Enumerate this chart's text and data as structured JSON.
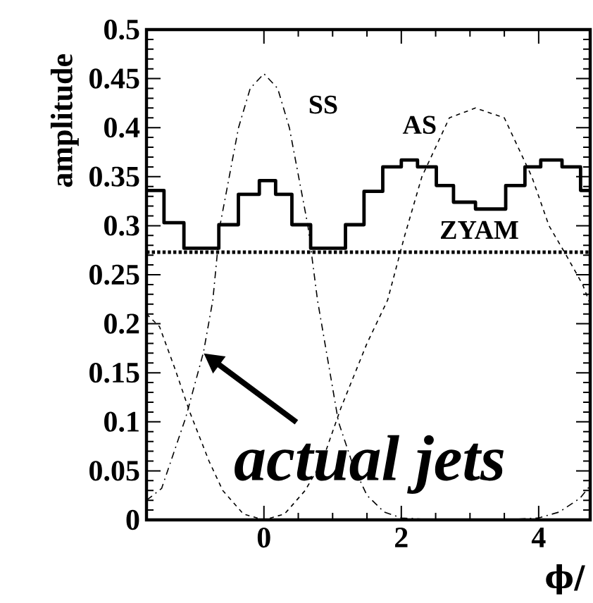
{
  "chart_data": {
    "type": "line",
    "ylabel": "amplitude",
    "xlabel": "ϕ/",
    "xlim": [
      -1.71,
      4.75
    ],
    "ylim": [
      0,
      0.5
    ],
    "xticks": [
      0,
      2,
      4
    ],
    "yticks": [
      0,
      0.05,
      0.1,
      0.15,
      0.2,
      0.25,
      0.3,
      0.35,
      0.4,
      0.45,
      0.5
    ],
    "marker": "none",
    "series": [
      {
        "type": "step",
        "color": "#000000",
        "line_style": "solid",
        "x": [
          -1.71,
          -1.455,
          -1.165,
          -0.657,
          -0.372,
          -0.067,
          0.17,
          0.407,
          0.68,
          1.187,
          1.457,
          1.73,
          2.0,
          2.236,
          2.51,
          2.76,
          3.08,
          3.52,
          3.8,
          4.03,
          4.34,
          4.61,
          4.75
        ],
        "values": [
          0.336,
          0.303,
          0.277,
          0.301,
          0.332,
          0.346,
          0.332,
          0.301,
          0.277,
          0.301,
          0.335,
          0.36,
          0.367,
          0.36,
          0.341,
          0.324,
          0.317,
          0.341,
          0.36,
          0.367,
          0.36,
          0.336,
          0.336
        ]
      },
      {
        "name": "SS",
        "type": "line",
        "color": "#000000",
        "line_style": "dashdot",
        "x": [
          -1.71,
          -1.49,
          -1.14,
          -0.88,
          -0.744,
          -0.64,
          -0.37,
          -0.2,
          0,
          0.2,
          0.37,
          0.64,
          0.78,
          1.085,
          1.3,
          1.5,
          1.75,
          2.0,
          2.5,
          3.0,
          3.5,
          4.0,
          4.3,
          4.6,
          4.75
        ],
        "values": [
          0.02,
          0.032,
          0.104,
          0.171,
          0.224,
          0.3,
          0.4,
          0.44,
          0.455,
          0.44,
          0.4,
          0.3,
          0.224,
          0.1,
          0.055,
          0.025,
          0.008,
          0.002,
          0,
          0,
          0,
          0.002,
          0.008,
          0.022,
          0.035
        ]
      },
      {
        "name": "AS",
        "type": "line",
        "color": "#000000",
        "line_style": "dashed",
        "x": [
          -1.71,
          -1.52,
          -1.3,
          -1.08,
          -0.8,
          -0.6,
          -0.3,
          0,
          0.3,
          0.6,
          0.85,
          1.12,
          1.5,
          1.8,
          2.05,
          2.3,
          2.7,
          3.08,
          3.5,
          3.9,
          4.15,
          4.4,
          4.64,
          4.75
        ],
        "values": [
          0.21,
          0.197,
          0.155,
          0.11,
          0.06,
          0.03,
          0.006,
          0,
          0.006,
          0.03,
          0.06,
          0.114,
          0.18,
          0.224,
          0.29,
          0.35,
          0.41,
          0.42,
          0.41,
          0.35,
          0.3,
          0.27,
          0.24,
          0.22
        ]
      }
    ],
    "ref_lines": [
      {
        "axis": "y",
        "value": 0.273,
        "label": "ZYAM",
        "line_style": "dotted",
        "color": "#000000"
      }
    ],
    "annotations": [
      {
        "text": "actual jets",
        "x": -0.88,
        "y": 0.17
      }
    ]
  }
}
